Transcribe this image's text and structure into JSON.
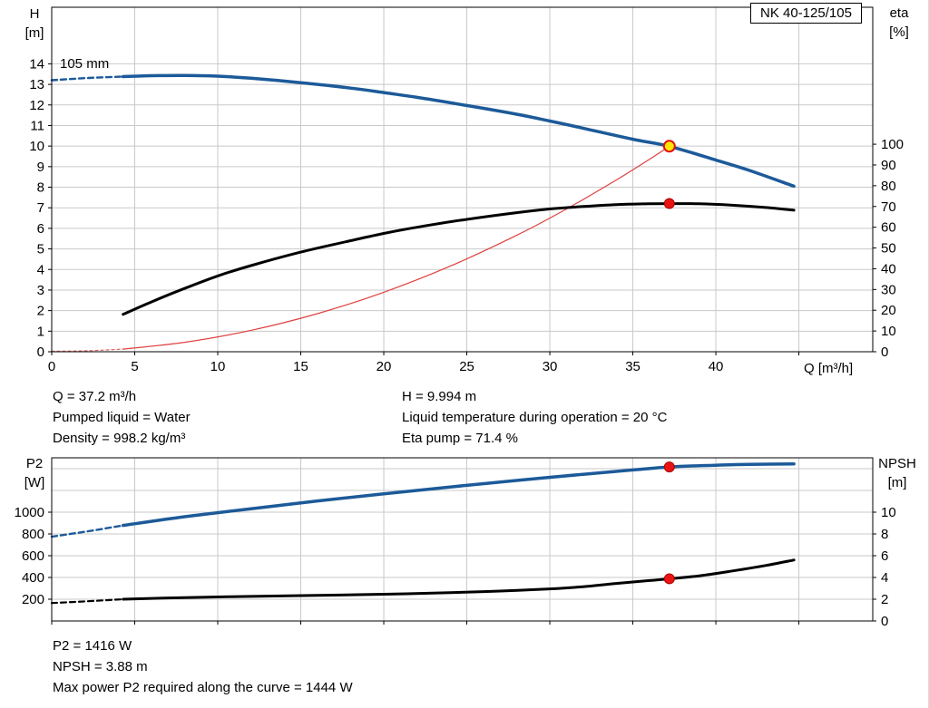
{
  "chart_data": [
    {
      "type": "line",
      "title": "NK 40-125/105",
      "annotation": "105 mm",
      "xlabel": "Q [m³/h]",
      "ylabel_left": "H\n[m]",
      "ylabel_right": "eta\n[%]",
      "x_range": [
        0,
        49.45
      ],
      "x_ticks": [
        0,
        5,
        10,
        15,
        20,
        25,
        30,
        35,
        40
      ],
      "x_grid": [
        5,
        10,
        15,
        20,
        25,
        30,
        35,
        40,
        45
      ],
      "x_labels": true,
      "left_range": [
        0,
        16.75
      ],
      "left_ticks": [
        0,
        1,
        2,
        3,
        4,
        5,
        6,
        7,
        8,
        9,
        10,
        11,
        12,
        13,
        14
      ],
      "left_grid": [
        1,
        2,
        3,
        4,
        5,
        6,
        7,
        8,
        9,
        10,
        11,
        12,
        13,
        14
      ],
      "right_range": [
        0,
        166
      ],
      "right_ticks": [
        0,
        10,
        20,
        30,
        40,
        50,
        60,
        70,
        80,
        90,
        100
      ],
      "grid": true,
      "series": [
        {
          "name": "head-curve-below-min-flow",
          "axis": "left",
          "color": "#1c5a99",
          "width": 2.4,
          "dash": "6 4",
          "points": [
            [
              0,
              13.2
            ],
            [
              2.2,
              13.31
            ],
            [
              4.3,
              13.38
            ]
          ]
        },
        {
          "name": "head-curve",
          "axis": "left",
          "color": "#1c5a99",
          "width": 3.5,
          "points": [
            [
              4.3,
              13.38
            ],
            [
              6,
              13.42
            ],
            [
              8,
              13.43
            ],
            [
              10,
              13.4
            ],
            [
              12,
              13.3
            ],
            [
              15,
              13.08
            ],
            [
              18,
              12.82
            ],
            [
              20,
              12.6
            ],
            [
              22,
              12.37
            ],
            [
              25,
              11.97
            ],
            [
              28,
              11.55
            ],
            [
              30,
              11.22
            ],
            [
              32,
              10.87
            ],
            [
              35,
              10.33
            ],
            [
              37.2,
              9.99
            ],
            [
              40,
              9.32
            ],
            [
              42,
              8.82
            ],
            [
              44.7,
              8.05
            ]
          ]
        },
        {
          "name": "system-curve-below-min-flow",
          "axis": "left",
          "color": "#e06666",
          "width": 1.2,
          "dash": "3 3",
          "points": [
            [
              0,
              0.02
            ],
            [
              2.2,
              0.05
            ],
            [
              4.3,
              0.13
            ]
          ]
        },
        {
          "name": "system-curve",
          "axis": "left",
          "color": "#e04040",
          "width": 1.2,
          "points": [
            [
              4.3,
              0.13
            ],
            [
              8,
              0.46
            ],
            [
              12,
              1.04
            ],
            [
              16,
              1.85
            ],
            [
              20,
              2.89
            ],
            [
              24,
              4.16
            ],
            [
              28,
              5.66
            ],
            [
              31,
              6.94
            ],
            [
              34,
              8.35
            ],
            [
              36,
              9.36
            ],
            [
              37.2,
              9.99
            ]
          ]
        },
        {
          "name": "efficiency-curve",
          "axis": "right",
          "color": "#000000",
          "width": 3,
          "points": [
            [
              4.3,
              18
            ],
            [
              6,
              24
            ],
            [
              8,
              30.5
            ],
            [
              10,
              36.5
            ],
            [
              12,
              41.5
            ],
            [
              15,
              48
            ],
            [
              18,
              53.5
            ],
            [
              20,
              57
            ],
            [
              22,
              60
            ],
            [
              25,
              63.8
            ],
            [
              28,
              67
            ],
            [
              30,
              68.8
            ],
            [
              32,
              70
            ],
            [
              34,
              70.9
            ],
            [
              36,
              71.3
            ],
            [
              37.2,
              71.4
            ],
            [
              39,
              71.3
            ],
            [
              41,
              70.6
            ],
            [
              43,
              69.5
            ],
            [
              44.7,
              68.2
            ]
          ]
        }
      ],
      "markers": [
        {
          "name": "duty-point",
          "axis": "left",
          "x": 37.2,
          "y": 9.994,
          "r": 6,
          "fill": "#ffe600",
          "stroke": "#e01010",
          "stroke_width": 2
        },
        {
          "name": "efficiency-point",
          "axis": "right",
          "x": 37.2,
          "y": 71.4,
          "r": 5.5,
          "fill": "#e81414",
          "stroke": "#b00000",
          "stroke_width": 1
        }
      ],
      "duty_point": {
        "Q_m3h": 37.2,
        "H_m": 9.994,
        "eta_percent": 71.4
      }
    },
    {
      "type": "line",
      "title": "",
      "xlabel": "",
      "ylabel_left": "P2\n[W]",
      "ylabel_right": "NPSH\n[m]",
      "x_range": [
        0,
        49.45
      ],
      "x_ticks": [
        0,
        5,
        10,
        15,
        20,
        25,
        30,
        35,
        40,
        45
      ],
      "x_grid": [
        5,
        10,
        15,
        20,
        25,
        30,
        35,
        40,
        45
      ],
      "x_labels": false,
      "left_range": [
        0,
        1500
      ],
      "left_ticks": [
        200,
        400,
        600,
        800,
        1000
      ],
      "left_grid": [
        200,
        400,
        600,
        800,
        1000,
        1200,
        1400
      ],
      "right_range": [
        0,
        15
      ],
      "right_ticks": [
        0,
        2,
        4,
        6,
        8,
        10
      ],
      "grid": true,
      "series": [
        {
          "name": "p2-curve-below-min-flow",
          "axis": "left",
          "color": "#1c5a99",
          "width": 2.4,
          "dash": "6 4",
          "points": [
            [
              0,
              775
            ],
            [
              2.2,
              825
            ],
            [
              4.3,
              878
            ]
          ]
        },
        {
          "name": "p2-curve",
          "axis": "left",
          "color": "#1c5a99",
          "width": 3.5,
          "points": [
            [
              4.3,
              878
            ],
            [
              8,
              958
            ],
            [
              12,
              1032
            ],
            [
              16,
              1103
            ],
            [
              20,
              1168
            ],
            [
              24,
              1232
            ],
            [
              28,
              1292
            ],
            [
              32,
              1348
            ],
            [
              35,
              1388
            ],
            [
              37.2,
              1416
            ],
            [
              40,
              1432
            ],
            [
              42,
              1440
            ],
            [
              44.7,
              1444
            ]
          ]
        },
        {
          "name": "npsh-curve-below-min-flow",
          "axis": "right",
          "color": "#000000",
          "width": 2.2,
          "dash": "6 4",
          "points": [
            [
              0,
              1.65
            ],
            [
              2.2,
              1.82
            ],
            [
              4.3,
              2.0
            ]
          ]
        },
        {
          "name": "npsh-curve",
          "axis": "right",
          "color": "#000000",
          "width": 3,
          "points": [
            [
              4.3,
              2.0
            ],
            [
              8,
              2.15
            ],
            [
              12,
              2.26
            ],
            [
              16,
              2.36
            ],
            [
              20,
              2.46
            ],
            [
              24,
              2.6
            ],
            [
              27,
              2.75
            ],
            [
              30,
              2.95
            ],
            [
              32,
              3.15
            ],
            [
              34,
              3.45
            ],
            [
              36,
              3.72
            ],
            [
              37.2,
              3.88
            ],
            [
              39,
              4.15
            ],
            [
              41,
              4.6
            ],
            [
              43,
              5.1
            ],
            [
              44.7,
              5.6
            ]
          ]
        }
      ],
      "markers": [
        {
          "name": "p2-point",
          "axis": "left",
          "x": 37.2,
          "y": 1416,
          "r": 5.5,
          "fill": "#e81414",
          "stroke": "#b00000",
          "stroke_width": 1
        },
        {
          "name": "npsh-point",
          "axis": "right",
          "x": 37.2,
          "y": 3.88,
          "r": 5.5,
          "fill": "#e81414",
          "stroke": "#b00000",
          "stroke_width": 1
        }
      ],
      "duty_point": {
        "P2_W": 1416,
        "NPSH_m": 3.88,
        "max_P2_along_curve_W": 1444
      }
    }
  ],
  "results": {
    "left": [
      "Q = 37.2 m³/h",
      "Pumped liquid = Water",
      "Density = 998.2 kg/m³"
    ],
    "right": [
      "H = 9.994 m",
      "Liquid temperature during operation = 20 °C",
      "Eta pump = 71.4 %"
    ]
  },
  "footer": [
    "P2 = 1416 W",
    "NPSH = 3.88 m",
    "Max power P2 required along the curve = 1444 W"
  ]
}
